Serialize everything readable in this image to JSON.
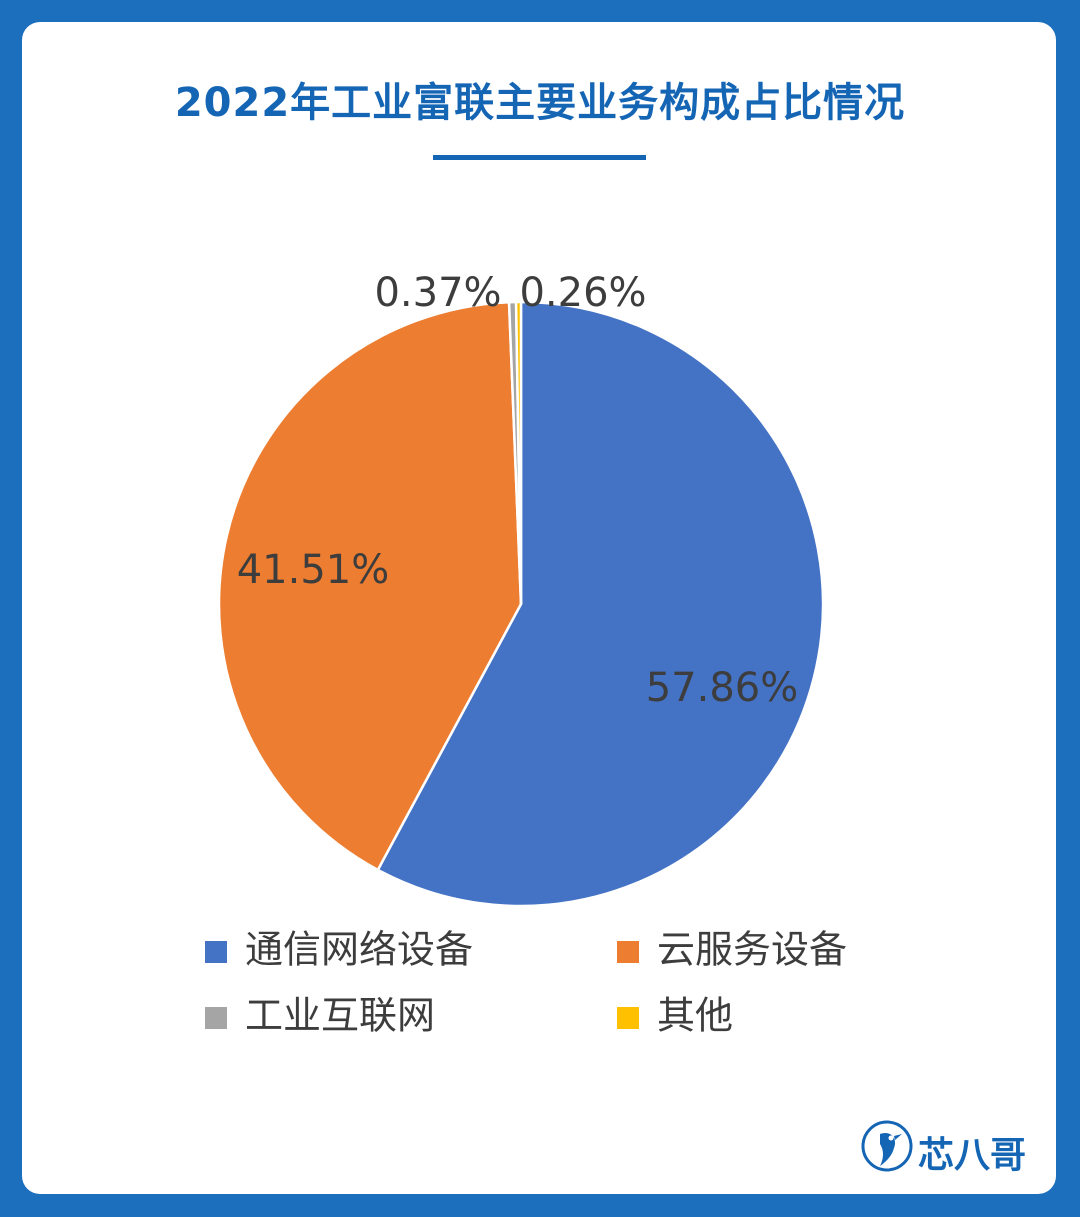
{
  "chart_data": {
    "type": "pie",
    "title": "2022年工业富联主要业务构成占比情况",
    "categories": [
      "通信网络设备",
      "云服务设备",
      "工业互联网",
      "其他"
    ],
    "values": [
      57.86,
      41.51,
      0.37,
      0.26
    ],
    "labels": [
      "57.86%",
      "41.51%",
      "0.37%",
      "0.26%"
    ],
    "colors": [
      "#4472c4",
      "#ed7d31",
      "#a5a5a5",
      "#ffc000"
    ],
    "legend_position": "bottom",
    "start_angle": "12 o'clock",
    "direction": "clockwise"
  },
  "brand": {
    "name": "芯八哥",
    "icon": "bird-logo-icon"
  }
}
